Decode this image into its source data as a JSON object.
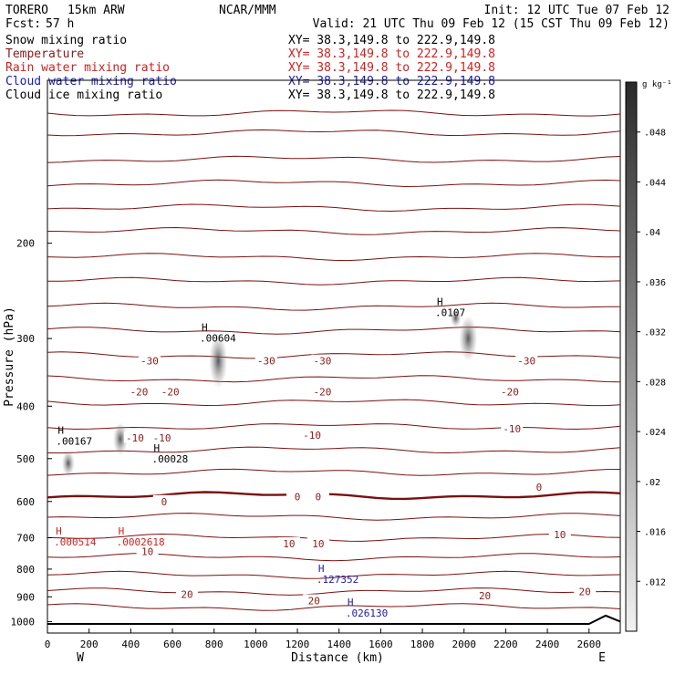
{
  "header": {
    "model": "TORERO",
    "resolution": "15km ARW",
    "org": "NCAR/MMM",
    "init": "Init: 12 UTC Tue 07 Feb 12",
    "fcst_label": "Fcst:",
    "fcst_value": "57 h",
    "valid": "Valid: 21 UTC Thu 09 Feb 12 (15 CST Thu 09 Feb 12)"
  },
  "legend": {
    "xy_text": "XY=  38.3,149.8 to 222.9,149.8",
    "entries": [
      {
        "name": "Snow mixing ratio",
        "color": "#000000"
      },
      {
        "name": "Temperature",
        "color": "#8b1a1a"
      },
      {
        "name": "Rain water mixing ratio",
        "color": "#cc2222"
      },
      {
        "name": "Cloud water mixing ratio",
        "color": "#1a1aaa"
      },
      {
        "name": "Cloud ice mixing ratio",
        "color": "#000000"
      }
    ]
  },
  "chart_data": {
    "type": "cross-section",
    "xlabel": "Distance (km)",
    "ylabel": "Pressure (hPa)",
    "xlim": [
      0,
      2750
    ],
    "ylim": [
      1050,
      100
    ],
    "y_scale": "log",
    "x_ticks": [
      "0",
      "200",
      "400",
      "600",
      "800",
      "1000",
      "1200",
      "1400",
      "1600",
      "1800",
      "2000",
      "2200",
      "2400",
      "2600"
    ],
    "y_ticks": [
      "200",
      "300",
      "400",
      "500",
      "600",
      "700",
      "800",
      "900",
      "1000"
    ],
    "x_end_labels": {
      "left": "W",
      "right": "E"
    },
    "colorbar": {
      "unit": "g kg⁻¹",
      "ticks": [
        ".012",
        ".016",
        ".02",
        ".024",
        ".028",
        ".032",
        ".036",
        ".04",
        ".044",
        ".048"
      ]
    },
    "temperature_contours": [
      {
        "label": "-30",
        "positions": [
          [
            490,
            330
          ],
          [
            1050,
            330
          ],
          [
            1320,
            330
          ],
          [
            2300,
            330
          ]
        ]
      },
      {
        "label": "-20",
        "positions": [
          [
            440,
            376
          ],
          [
            590,
            376
          ],
          [
            1320,
            376
          ],
          [
            2220,
            376
          ]
        ]
      },
      {
        "label": "-10",
        "positions": [
          [
            420,
            458
          ],
          [
            550,
            458
          ],
          [
            1270,
            452
          ],
          [
            2230,
            440
          ]
        ]
      },
      {
        "label": "0",
        "positions": [
          [
            560,
            600
          ],
          [
            1200,
            588
          ],
          [
            1300,
            588
          ],
          [
            2360,
            564
          ]
        ]
      },
      {
        "label": "10",
        "positions": [
          [
            480,
            742
          ],
          [
            1160,
            718
          ],
          [
            1300,
            718
          ],
          [
            2460,
            690
          ]
        ]
      },
      {
        "label": "20",
        "positions": [
          [
            670,
            890
          ],
          [
            1280,
            915
          ],
          [
            2100,
            895
          ],
          [
            2580,
            880
          ]
        ]
      }
    ],
    "maxima": [
      {
        "label": "H",
        "value": ".00167",
        "x": 50,
        "p": 450,
        "color": "#000000"
      },
      {
        "label": "H",
        "value": ".00028",
        "x": 510,
        "p": 485,
        "color": "#000000"
      },
      {
        "label": "H",
        "value": ".00604",
        "x": 740,
        "p": 290,
        "color": "#000000"
      },
      {
        "label": "H",
        "value": ".0107",
        "x": 1870,
        "p": 260,
        "color": "#000000"
      },
      {
        "label": "H",
        "value": ".000514",
        "x": 40,
        "p": 690,
        "color": "#cc2222"
      },
      {
        "label": "H",
        "value": ".0002618",
        "x": 340,
        "p": 690,
        "color": "#cc2222"
      },
      {
        "label": "H",
        "value": ".127352",
        "x": 1300,
        "p": 810,
        "color": "#1a1aaa"
      },
      {
        "label": "H",
        "value": ".026130",
        "x": 1440,
        "p": 935,
        "color": "#1a1aaa"
      }
    ]
  }
}
